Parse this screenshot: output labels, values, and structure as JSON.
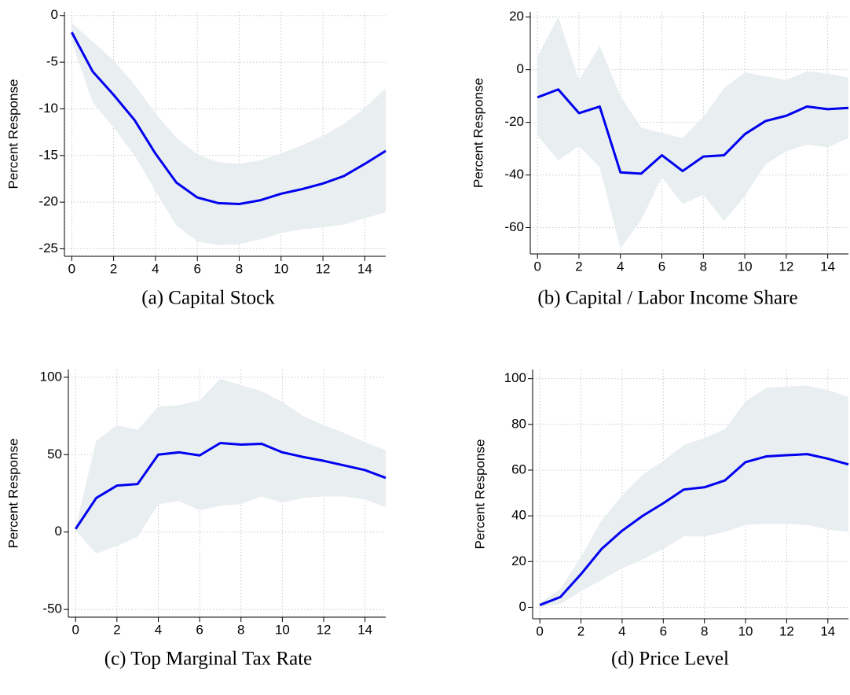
{
  "chart_data": [
    {
      "type": "line",
      "caption": "(a) Capital Stock",
      "ylabel": "Percent Response",
      "x": [
        0,
        1,
        2,
        3,
        4,
        5,
        6,
        7,
        8,
        9,
        10,
        11,
        12,
        13,
        14,
        15
      ],
      "series": [
        {
          "color": "#0000ee",
          "band_color": "#e9eef1",
          "values": [
            -1.8,
            -6,
            -8.5,
            -11.2,
            -14.8,
            -17.9,
            -19.5,
            -20.1,
            -20.2,
            -19.8,
            -19.1,
            -18.6,
            -18,
            -17.2,
            -15.9,
            -14.5
          ],
          "upper": [
            -0.8,
            -2.8,
            -4.8,
            -7.4,
            -10.5,
            -13.1,
            -14.9,
            -15.7,
            -15.9,
            -15.5,
            -14.8,
            -13.9,
            -12.9,
            -11.6,
            -9.9,
            -7.8
          ],
          "lower": [
            -2.8,
            -9.3,
            -12,
            -15,
            -18.8,
            -22.5,
            -24.2,
            -24.6,
            -24.5,
            -24,
            -23.3,
            -22.9,
            -22.7,
            -22.4,
            -21.7,
            -21.1
          ]
        }
      ],
      "xlim": [
        -0.35,
        15
      ],
      "ylim": [
        -25.8,
        0.4
      ],
      "xticks": [
        0,
        2,
        4,
        6,
        8,
        10,
        12,
        14
      ],
      "yticks": [
        -25,
        -20,
        -15,
        -10,
        -5,
        0
      ],
      "grid": true
    },
    {
      "type": "line",
      "caption": "(b) Capital / Labor Income Share",
      "ylabel": "Percent Response",
      "x": [
        0,
        1,
        2,
        3,
        4,
        5,
        6,
        7,
        8,
        9,
        10,
        11,
        12,
        13,
        14,
        15
      ],
      "series": [
        {
          "color": "#0000ee",
          "band_color": "#e9eef1",
          "values": [
            -10.5,
            -7.5,
            -16.5,
            -14,
            -39,
            -39.5,
            -32.5,
            -38.5,
            -33,
            -32.5,
            -24.5,
            -19.5,
            -17.5,
            -14,
            -15,
            -14.5
          ],
          "upper": [
            5,
            20,
            -4,
            9,
            -10,
            -22,
            -24,
            -26,
            -18,
            -7,
            -1,
            -2.5,
            -4,
            -0.5,
            -1.5,
            -3
          ],
          "lower": [
            -25,
            -34.5,
            -29,
            -37,
            -68,
            -57,
            -41,
            -51,
            -47.5,
            -57.5,
            -48,
            -36,
            -31,
            -28.5,
            -29.5,
            -26
          ]
        }
      ],
      "xlim": [
        -0.35,
        15
      ],
      "ylim": [
        -70,
        22
      ],
      "xticks": [
        0,
        2,
        4,
        6,
        8,
        10,
        12,
        14
      ],
      "yticks": [
        -60,
        -40,
        -20,
        0,
        20
      ],
      "grid": true
    },
    {
      "type": "line",
      "caption": "(c) Top Marginal Tax Rate",
      "ylabel": "Percent Response",
      "x": [
        0,
        1,
        2,
        3,
        4,
        5,
        6,
        7,
        8,
        9,
        10,
        11,
        12,
        13,
        14,
        15
      ],
      "series": [
        {
          "color": "#0000ee",
          "band_color": "#e9eef1",
          "values": [
            2,
            22,
            30,
            31,
            50,
            51.5,
            49.5,
            57.5,
            56.5,
            57,
            51.5,
            48.5,
            46,
            43,
            40,
            35
          ],
          "upper": [
            3,
            59,
            69,
            66,
            81,
            82,
            85,
            99,
            95,
            91,
            84,
            75,
            69,
            64,
            58,
            53
          ],
          "lower": [
            1,
            -14,
            -9,
            -3,
            18,
            20,
            14,
            17,
            18,
            23,
            19,
            22,
            23,
            23,
            21,
            16
          ]
        }
      ],
      "xlim": [
        -0.35,
        15
      ],
      "ylim": [
        -55,
        105
      ],
      "xticks": [
        0,
        2,
        4,
        6,
        8,
        10,
        12,
        14
      ],
      "yticks": [
        -50,
        0,
        50,
        100
      ],
      "grid": true
    },
    {
      "type": "line",
      "caption": "(d) Price Level",
      "ylabel": "Percent Response",
      "x": [
        0,
        1,
        2,
        3,
        4,
        5,
        6,
        7,
        8,
        9,
        10,
        11,
        12,
        13,
        14,
        15
      ],
      "series": [
        {
          "color": "#0000ee",
          "band_color": "#e9eef1",
          "values": [
            1,
            4.5,
            14.5,
            25.5,
            33.5,
            40,
            45.5,
            51.5,
            52.5,
            55.5,
            63.5,
            66,
            66.5,
            67,
            65,
            62.5
          ],
          "upper": [
            2,
            8,
            22,
            38,
            49,
            58,
            64,
            71,
            74,
            78,
            90,
            96,
            96.5,
            97,
            95,
            92
          ],
          "lower": [
            0,
            1.5,
            7,
            12,
            17,
            21,
            25.5,
            31,
            31,
            33,
            36,
            36.5,
            36.5,
            36,
            34,
            33
          ]
        }
      ],
      "xlim": [
        -0.35,
        15
      ],
      "ylim": [
        -5,
        104
      ],
      "xticks": [
        0,
        2,
        4,
        6,
        8,
        10,
        12,
        14
      ],
      "yticks": [
        0,
        20,
        40,
        60,
        80,
        100
      ],
      "grid": true
    }
  ]
}
